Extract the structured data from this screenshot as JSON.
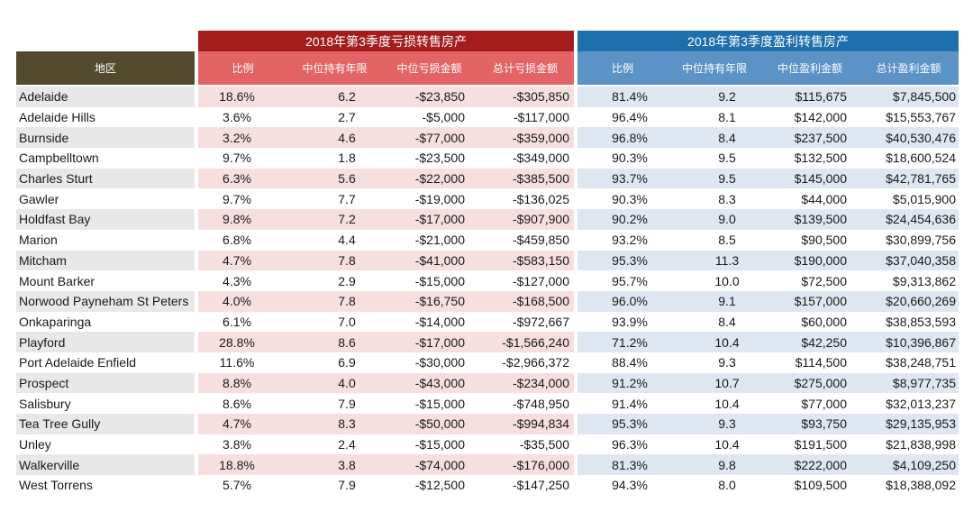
{
  "groups": {
    "loss": "2018年第3季度亏损转售房产",
    "profit": "2018年第3季度盈利转售房产"
  },
  "headers": {
    "area": "地区",
    "loss": [
      "比例",
      "中位持有年限",
      "中位亏损金额",
      "总计亏损金额"
    ],
    "profit": [
      "比例",
      "中位持有年限",
      "中位盈利金额",
      "总计盈利金额"
    ]
  },
  "rows": [
    [
      "Adelaide",
      "18.6%",
      "6.2",
      "-$23,850",
      "-$305,850",
      "81.4%",
      "9.2",
      "$115,675",
      "$7,845,500"
    ],
    [
      "Adelaide Hills",
      "3.6%",
      "2.7",
      "-$5,000",
      "-$117,000",
      "96.4%",
      "8.1",
      "$142,000",
      "$15,553,767"
    ],
    [
      "Burnside",
      "3.2%",
      "4.6",
      "-$77,000",
      "-$359,000",
      "96.8%",
      "8.4",
      "$237,500",
      "$40,530,476"
    ],
    [
      "Campbelltown",
      "9.7%",
      "1.8",
      "-$23,500",
      "-$349,000",
      "90.3%",
      "9.5",
      "$132,500",
      "$18,600,524"
    ],
    [
      "Charles Sturt",
      "6.3%",
      "5.6",
      "-$22,000",
      "-$385,500",
      "93.7%",
      "9.5",
      "$145,000",
      "$42,781,765"
    ],
    [
      "Gawler",
      "9.7%",
      "7.7",
      "-$19,000",
      "-$136,025",
      "90.3%",
      "8.3",
      "$44,000",
      "$5,015,900"
    ],
    [
      "Holdfast Bay",
      "9.8%",
      "7.2",
      "-$17,000",
      "-$907,900",
      "90.2%",
      "9.0",
      "$139,500",
      "$24,454,636"
    ],
    [
      "Marion",
      "6.8%",
      "4.4",
      "-$21,000",
      "-$459,850",
      "93.2%",
      "8.5",
      "$90,500",
      "$30,899,756"
    ],
    [
      "Mitcham",
      "4.7%",
      "7.8",
      "-$41,000",
      "-$583,150",
      "95.3%",
      "11.3",
      "$190,000",
      "$37,040,358"
    ],
    [
      "Mount Barker",
      "4.3%",
      "2.9",
      "-$15,000",
      "-$127,000",
      "95.7%",
      "10.0",
      "$72,500",
      "$9,313,862"
    ],
    [
      "Norwood Payneham St Peters",
      "4.0%",
      "7.8",
      "-$16,750",
      "-$168,500",
      "96.0%",
      "9.1",
      "$157,000",
      "$20,660,269"
    ],
    [
      "Onkaparinga",
      "6.1%",
      "7.0",
      "-$14,000",
      "-$972,667",
      "93.9%",
      "8.4",
      "$60,000",
      "$38,853,593"
    ],
    [
      "Playford",
      "28.8%",
      "8.6",
      "-$17,000",
      "-$1,566,240",
      "71.2%",
      "10.4",
      "$42,250",
      "$10,396,867"
    ],
    [
      "Port Adelaide Enfield",
      "11.6%",
      "6.9",
      "-$30,000",
      "-$2,966,372",
      "88.4%",
      "9.3",
      "$114,500",
      "$38,248,751"
    ],
    [
      "Prospect",
      "8.8%",
      "4.0",
      "-$43,000",
      "-$234,000",
      "91.2%",
      "10.7",
      "$275,000",
      "$8,977,735"
    ],
    [
      "Salisbury",
      "8.6%",
      "7.9",
      "-$15,000",
      "-$748,950",
      "91.4%",
      "10.4",
      "$77,000",
      "$32,013,237"
    ],
    [
      "Tea Tree Gully",
      "4.7%",
      "8.3",
      "-$50,000",
      "-$994,834",
      "95.3%",
      "9.3",
      "$93,750",
      "$29,135,953"
    ],
    [
      "Unley",
      "3.8%",
      "2.4",
      "-$15,000",
      "-$35,500",
      "96.3%",
      "10.4",
      "$191,500",
      "$21,838,998"
    ],
    [
      "Walkerville",
      "18.8%",
      "3.8",
      "-$74,000",
      "-$176,000",
      "81.3%",
      "9.8",
      "$222,000",
      "$4,109,250"
    ],
    [
      "West Torrens",
      "5.7%",
      "7.9",
      "-$12,500",
      "-$147,250",
      "94.3%",
      "8.0",
      "$109,500",
      "$18,388,092"
    ]
  ]
}
